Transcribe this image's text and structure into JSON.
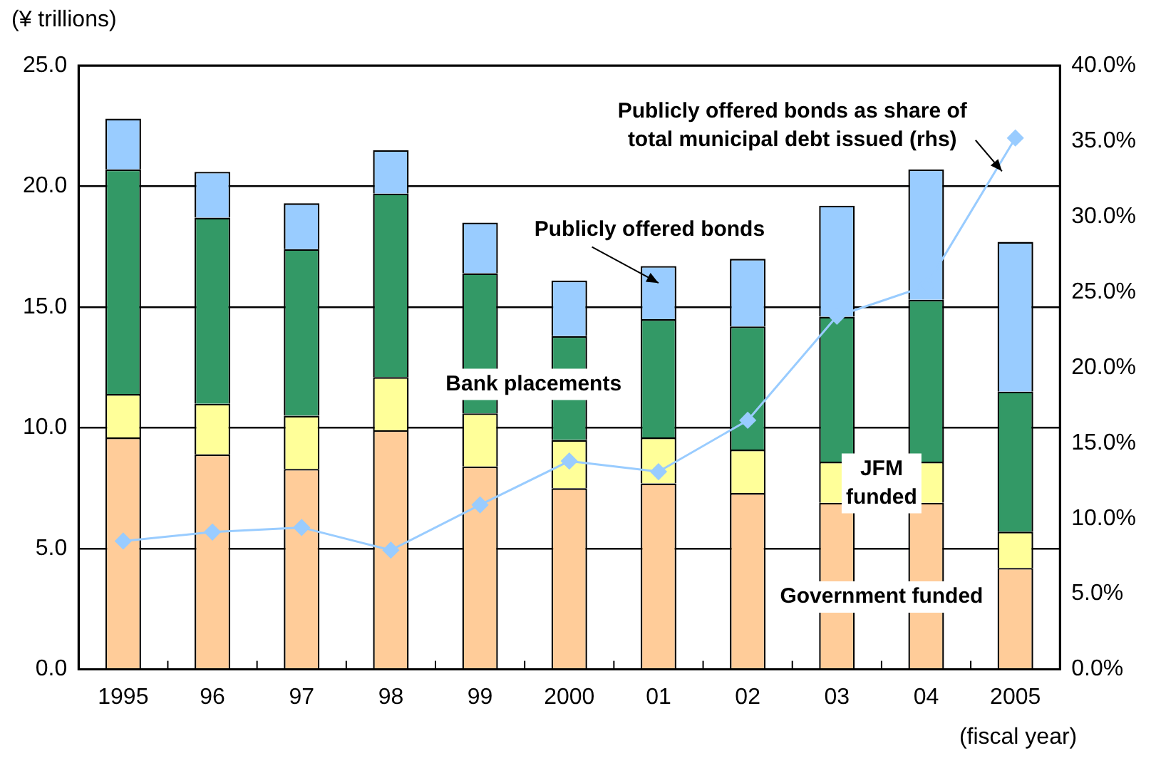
{
  "chart_data": {
    "type": "bar",
    "stacked": true,
    "xlabel": "(fiscal year)",
    "ylabel": "(¥ trillions)",
    "categories": [
      "1995",
      "96",
      "97",
      "98",
      "99",
      "2000",
      "01",
      "02",
      "03",
      "04",
      "2005"
    ],
    "series": [
      {
        "name": "Government funded",
        "color": "#ffcc99",
        "values": [
          9.6,
          8.9,
          8.3,
          9.9,
          8.4,
          7.5,
          7.7,
          7.3,
          6.9,
          6.9,
          4.2
        ]
      },
      {
        "name": "JFM funded",
        "color": "#ffff99",
        "values": [
          1.8,
          2.1,
          2.2,
          2.2,
          2.2,
          2.0,
          1.9,
          1.8,
          1.7,
          1.7,
          1.5
        ]
      },
      {
        "name": "Bank placements",
        "color": "#339966",
        "values": [
          9.3,
          7.7,
          6.9,
          7.6,
          5.8,
          4.3,
          4.9,
          5.1,
          6.0,
          6.7,
          5.8
        ]
      },
      {
        "name": "Publicly offered bonds",
        "color": "#99ccff",
        "values": [
          2.1,
          1.9,
          1.9,
          1.8,
          2.1,
          2.3,
          2.2,
          2.8,
          4.6,
          5.4,
          6.2
        ]
      },
      {
        "name": "Publicly offered bonds as share of total municipal debt issued (rhs)",
        "type": "line",
        "axis": "y2",
        "color": "#99ccff",
        "marker": "diamond",
        "values": [
          8.5,
          9.1,
          9.4,
          7.9,
          10.9,
          13.8,
          13.1,
          16.5,
          23.4,
          25.4,
          35.2
        ]
      }
    ],
    "ylim": [
      0,
      25
    ],
    "yticks": [
      {
        "value": 0,
        "label": "0.0"
      },
      {
        "value": 5,
        "label": "5.0"
      },
      {
        "value": 10,
        "label": "10.0"
      },
      {
        "value": 15,
        "label": "15.0"
      },
      {
        "value": 20,
        "label": "20.0"
      },
      {
        "value": 25,
        "label": "25.0"
      }
    ],
    "y2lim": [
      0,
      40
    ],
    "y2ticks": [
      {
        "value": 0,
        "label": "0.0%"
      },
      {
        "value": 5,
        "label": "5.0%"
      },
      {
        "value": 10,
        "label": "10.0%"
      },
      {
        "value": 15,
        "label": "15.0%"
      },
      {
        "value": 20,
        "label": "20.0%"
      },
      {
        "value": 25,
        "label": "25.0%"
      },
      {
        "value": 30,
        "label": "30.0%"
      },
      {
        "value": 35,
        "label": "35.0%"
      },
      {
        "value": 40,
        "label": "40.0%"
      }
    ],
    "grid": "y",
    "legend": false
  }
}
